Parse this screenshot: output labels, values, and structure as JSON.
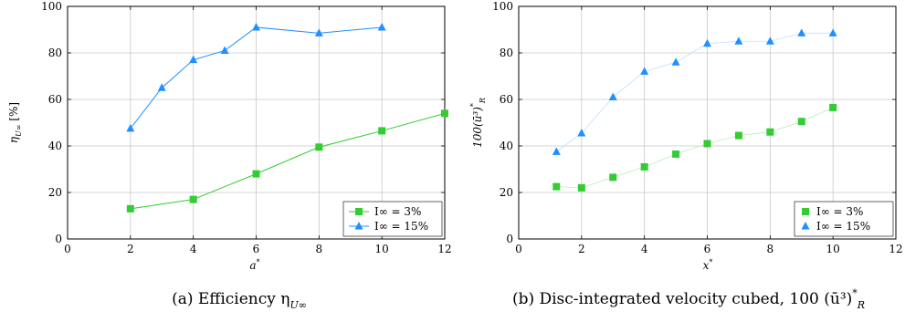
{
  "chart_data": [
    {
      "type": "line",
      "caption": "(a) Efficiency η",
      "caption_sub": "U∞",
      "xlabel": "a",
      "xlabel_sup": "*",
      "ylabel": "η",
      "ylabel_sub": "U∞",
      "ylabel_unit": " [%]",
      "xlim": [
        0,
        12
      ],
      "ylim": [
        0,
        100
      ],
      "xticks": [
        0,
        2,
        4,
        6,
        8,
        10,
        12
      ],
      "yticks": [
        0,
        20,
        40,
        60,
        80,
        100
      ],
      "grid": true,
      "legend_position": "bottom-right",
      "series": [
        {
          "name": "I∞ = 3%",
          "color": "#33cc33",
          "marker": "square",
          "line": true,
          "x": [
            2,
            4,
            6,
            8,
            10,
            12
          ],
          "y": [
            13,
            17,
            28,
            39.5,
            46.5,
            54
          ]
        },
        {
          "name": "I∞ = 15%",
          "color": "#1e90ff",
          "marker": "triangle",
          "line": true,
          "x": [
            2,
            3,
            4,
            5,
            6,
            8,
            10
          ],
          "y": [
            47.5,
            65,
            77,
            81,
            91,
            88.5,
            91
          ]
        }
      ]
    },
    {
      "type": "scatter",
      "caption": "(b) Disc-integrated velocity cubed, 100 (ū³)",
      "caption_sub": "R",
      "caption_sup": "*",
      "xlabel": "x",
      "xlabel_sup": "*",
      "ylabel": "100(ū³)",
      "ylabel_sub": "R",
      "ylabel_sup": "*",
      "xlim": [
        0,
        12
      ],
      "ylim": [
        0,
        100
      ],
      "xticks": [
        0,
        2,
        4,
        6,
        8,
        10,
        12
      ],
      "yticks": [
        0,
        20,
        40,
        60,
        80,
        100
      ],
      "grid": true,
      "legend_position": "bottom-right",
      "series": [
        {
          "name": "I∞ = 3%",
          "color": "#33cc33",
          "marker": "square",
          "line": false,
          "x": [
            1.2,
            2,
            3,
            4,
            5,
            6,
            7,
            8,
            9,
            10
          ],
          "y": [
            22.5,
            22,
            26.5,
            31,
            36.5,
            41,
            44.5,
            46,
            50.5,
            56.5
          ]
        },
        {
          "name": "I∞ = 15%",
          "color": "#1e90ff",
          "marker": "triangle",
          "line": false,
          "x": [
            1.2,
            2,
            3,
            4,
            5,
            6,
            7,
            8,
            9,
            10
          ],
          "y": [
            37.5,
            45.5,
            61,
            72,
            76,
            84,
            85,
            85,
            88.5,
            88.5
          ]
        }
      ]
    }
  ]
}
